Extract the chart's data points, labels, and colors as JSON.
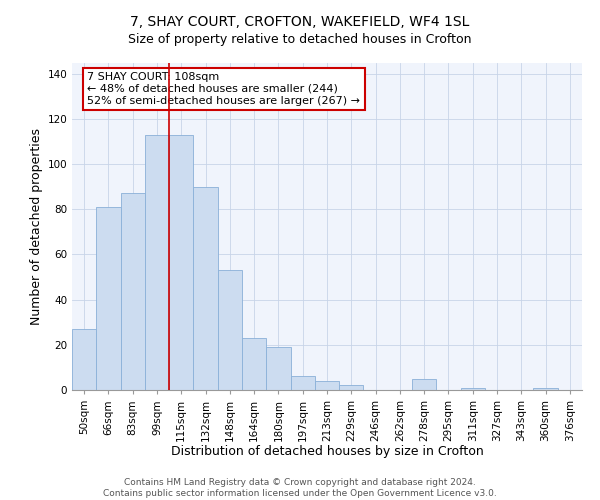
{
  "title": "7, SHAY COURT, CROFTON, WAKEFIELD, WF4 1SL",
  "subtitle": "Size of property relative to detached houses in Crofton",
  "xlabel": "Distribution of detached houses by size in Crofton",
  "ylabel": "Number of detached properties",
  "categories": [
    "50sqm",
    "66sqm",
    "83sqm",
    "99sqm",
    "115sqm",
    "132sqm",
    "148sqm",
    "164sqm",
    "180sqm",
    "197sqm",
    "213sqm",
    "229sqm",
    "246sqm",
    "262sqm",
    "278sqm",
    "295sqm",
    "311sqm",
    "327sqm",
    "343sqm",
    "360sqm",
    "376sqm"
  ],
  "values": [
    27,
    81,
    87,
    113,
    113,
    90,
    53,
    23,
    19,
    6,
    4,
    2,
    0,
    0,
    5,
    0,
    1,
    0,
    0,
    1,
    0
  ],
  "bar_color": "#ccdcf0",
  "bar_edge_color": "#8ab0d8",
  "vline_color": "#cc0000",
  "vline_index": 3.5,
  "annotation_text": "7 SHAY COURT: 108sqm\n← 48% of detached houses are smaller (244)\n52% of semi-detached houses are larger (267) →",
  "annotation_box_facecolor": "#ffffff",
  "annotation_box_edgecolor": "#cc0000",
  "ylim": [
    0,
    145
  ],
  "yticks": [
    0,
    20,
    40,
    60,
    80,
    100,
    120,
    140
  ],
  "footer_line1": "Contains HM Land Registry data © Crown copyright and database right 2024.",
  "footer_line2": "Contains public sector information licensed under the Open Government Licence v3.0.",
  "title_fontsize": 10,
  "xlabel_fontsize": 9,
  "ylabel_fontsize": 9,
  "tick_fontsize": 7.5,
  "annotation_fontsize": 8,
  "footer_fontsize": 6.5,
  "bg_color": "#f0f4fc"
}
